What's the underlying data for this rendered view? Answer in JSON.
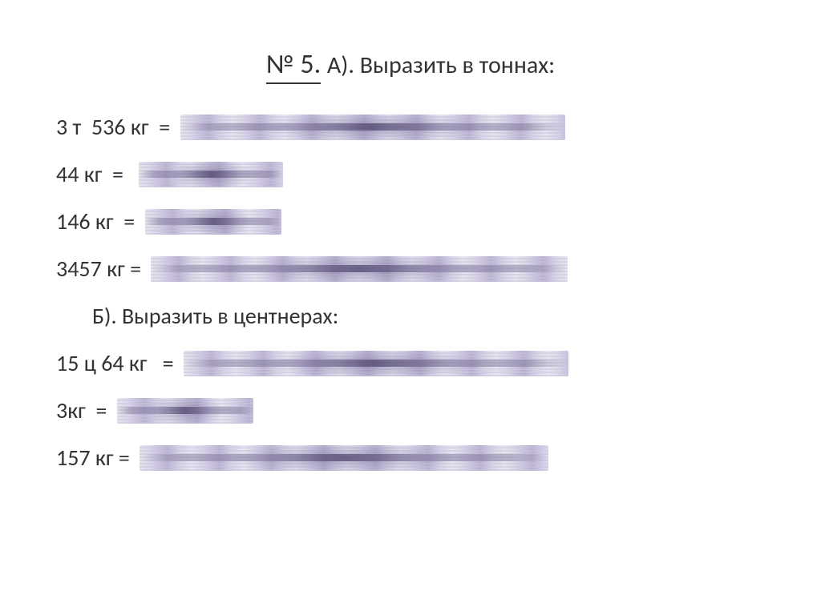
{
  "title": {
    "number": "№ 5.",
    "text": " А). Выразить в тоннах:"
  },
  "lines_a": [
    {
      "label": "3 т  536 кг  = ",
      "blur_width": 480
    },
    {
      "label": "44 кг  =  ",
      "blur_width": 180
    },
    {
      "label": "146 кг  = ",
      "blur_width": 170
    },
    {
      "label": "3457 кг = ",
      "blur_width": 520
    }
  ],
  "subheading_b": "Б). Выразить в центнерах:",
  "lines_b": [
    {
      "label": "15 ц 64 кг   = ",
      "blur_width": 480
    },
    {
      "label": "3кг  = ",
      "blur_width": 170
    },
    {
      "label": "157 кг = ",
      "blur_width": 510
    }
  ],
  "colors": {
    "background": "#ffffff",
    "text": "#333333",
    "blur_base": "#d8d4e8"
  },
  "typography": {
    "title_fontsize": 34,
    "subtitle_fontsize": 30,
    "body_fontsize": 28,
    "font_family": "Calibri"
  }
}
